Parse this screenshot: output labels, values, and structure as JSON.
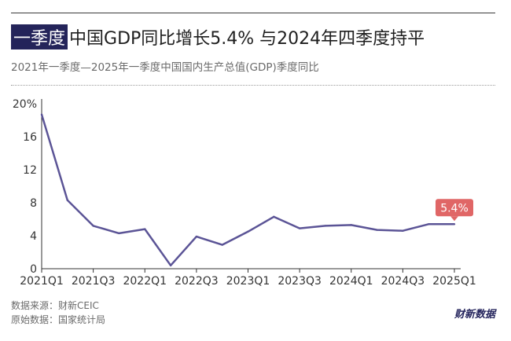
{
  "header": {
    "title_highlight": "一季度",
    "title_rest": "中国GDP同比增长5.4% 与2024年四季度持平",
    "subtitle": "2021年一季度—2025年一季度中国国内生产总值(GDP)季度同比"
  },
  "footer": {
    "source": "数据来源：财新CEIC",
    "raw_source": "原始数据：国家统计局",
    "logo_text": "财新数据"
  },
  "colors": {
    "line": "#5b5496",
    "label_bg": "#e06666",
    "title_highlight_bg": "#24245a"
  },
  "chart_data": {
    "type": "line",
    "title": "一季度中国GDP同比增长5.4% 与2024年四季度持平",
    "subtitle": "2021年一季度—2025年一季度中国国内生产总值(GDP)季度同比",
    "categories": [
      "2021Q1",
      "2021Q2",
      "2021Q3",
      "2021Q4",
      "2022Q1",
      "2022Q2",
      "2022Q3",
      "2022Q4",
      "2023Q1",
      "2023Q2",
      "2023Q3",
      "2023Q4",
      "2024Q1",
      "2024Q2",
      "2024Q3",
      "2024Q4",
      "2025Q1"
    ],
    "tick_labels": [
      "2021Q1",
      "2021Q3",
      "2022Q1",
      "2022Q3",
      "2023Q1",
      "2023Q3",
      "2024Q1",
      "2024Q3",
      "2025Q1"
    ],
    "values": [
      18.7,
      8.3,
      5.2,
      4.3,
      4.8,
      0.4,
      3.9,
      2.9,
      4.5,
      6.3,
      4.9,
      5.2,
      5.3,
      4.7,
      4.6,
      5.4,
      5.4
    ],
    "y_ticks": [
      "0",
      "4",
      "8",
      "12",
      "16",
      "20%"
    ],
    "ylim": [
      0,
      20
    ],
    "annotation": {
      "text": "5.4%",
      "category": "2025Q1",
      "value": 5.4
    },
    "grid": false,
    "legend": "none"
  }
}
